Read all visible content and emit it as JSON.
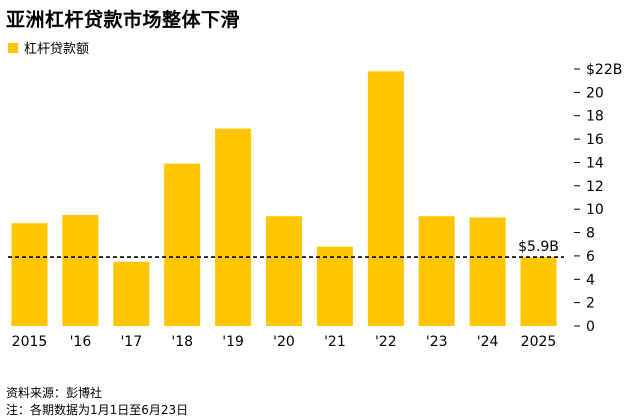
{
  "colors": {
    "bar": "#FFC600",
    "text": "#000000",
    "reference_line": "#000000"
  },
  "chart_data": {
    "type": "bar",
    "title": "亚洲杠杆贷款市场整体下滑",
    "legend": [
      "杠杆贷款额"
    ],
    "legend_position": "top-left",
    "categories": [
      "2015",
      "'16",
      "'17",
      "'18",
      "'19",
      "'20",
      "'21",
      "'22",
      "'23",
      "'24",
      "2025"
    ],
    "series": [
      {
        "name": "杠杆贷款额",
        "values": [
          8.8,
          9.5,
          5.5,
          13.9,
          16.9,
          9.4,
          6.8,
          21.8,
          9.4,
          9.3,
          5.9
        ]
      }
    ],
    "ylim": [
      0,
      22
    ],
    "yticks": [
      0,
      2,
      4,
      6,
      8,
      10,
      12,
      14,
      16,
      18,
      20,
      22
    ],
    "ytick_labels": [
      "0",
      "2",
      "4",
      "6",
      "8",
      "10",
      "12",
      "14",
      "16",
      "18",
      "20",
      "$22B"
    ],
    "y_axis_side": "right",
    "grid": false,
    "reference_line": {
      "value": 5.9,
      "style": "dashed",
      "label": "$5.9B"
    }
  },
  "footer": {
    "source": "资料来源：彭博社",
    "note": "注：各期数据为1月1日至6月23日"
  }
}
